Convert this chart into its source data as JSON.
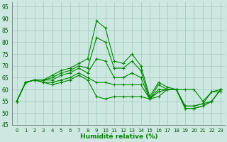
{
  "xlabel": "Humidité relative (%)",
  "background_color": "#cce8e0",
  "grid_color": "#aaccc4",
  "line_color": "#008800",
  "ylim": [
    45,
    97
  ],
  "xlim": [
    -0.5,
    23.5
  ],
  "yticks": [
    45,
    50,
    55,
    60,
    65,
    70,
    75,
    80,
    85,
    90,
    95
  ],
  "xticks": [
    0,
    1,
    2,
    3,
    4,
    5,
    6,
    7,
    8,
    9,
    10,
    11,
    12,
    13,
    14,
    15,
    16,
    17,
    18,
    19,
    20,
    21,
    22,
    23
  ],
  "series": [
    [
      55,
      63,
      64,
      64,
      66,
      68,
      69,
      71,
      73,
      89,
      86,
      72,
      71,
      75,
      70,
      57,
      63,
      61,
      60,
      60,
      60,
      55,
      59,
      59
    ],
    [
      55,
      63,
      64,
      64,
      65,
      67,
      68,
      70,
      69,
      82,
      80,
      69,
      69,
      72,
      68,
      56,
      62,
      60,
      60,
      53,
      53,
      54,
      59,
      60
    ],
    [
      55,
      63,
      64,
      64,
      64,
      66,
      67,
      69,
      67,
      73,
      72,
      65,
      65,
      67,
      65,
      56,
      60,
      60,
      60,
      53,
      53,
      54,
      55,
      60
    ],
    [
      55,
      63,
      64,
      63,
      63,
      64,
      65,
      67,
      65,
      63,
      63,
      62,
      62,
      62,
      62,
      56,
      59,
      60,
      60,
      52,
      52,
      53,
      55,
      60
    ],
    [
      55,
      63,
      64,
      63,
      62,
      63,
      64,
      66,
      64,
      57,
      56,
      57,
      57,
      57,
      57,
      56,
      57,
      60,
      60,
      52,
      52,
      53,
      55,
      60
    ]
  ]
}
